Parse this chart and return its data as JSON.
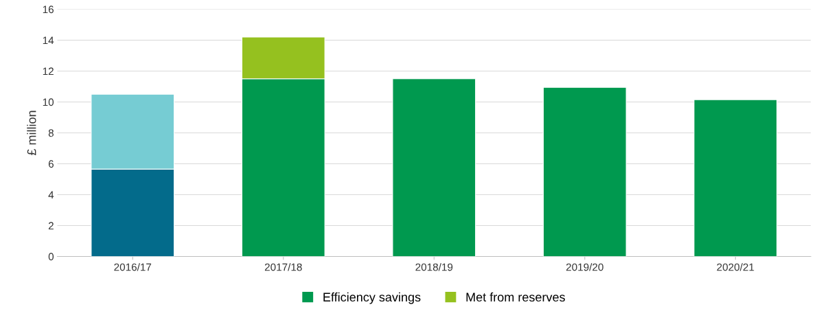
{
  "chart_data": {
    "type": "bar",
    "stacked": true,
    "ylabel": "£ million",
    "categories": [
      "2016/17",
      "2017/18",
      "2018/19",
      "2019/20",
      "2020/21"
    ],
    "series": [
      {
        "color": "#036b8b",
        "values": [
          5.65,
          null,
          null,
          null,
          null
        ]
      },
      {
        "color": "#76ccd3",
        "values": [
          4.85,
          null,
          null,
          null,
          null
        ]
      },
      {
        "name": "Efficiency savings",
        "color": "#00994f",
        "values": [
          null,
          11.5,
          11.5,
          10.95,
          10.15
        ]
      },
      {
        "name": "Met from reserves",
        "color": "#95c11f",
        "values": [
          null,
          2.7,
          null,
          null,
          null
        ]
      }
    ],
    "ylim": [
      0,
      16
    ],
    "yticks": [
      0,
      2,
      4,
      6,
      8,
      10,
      12,
      14,
      16
    ],
    "grid": "y",
    "legend": "bottom"
  }
}
